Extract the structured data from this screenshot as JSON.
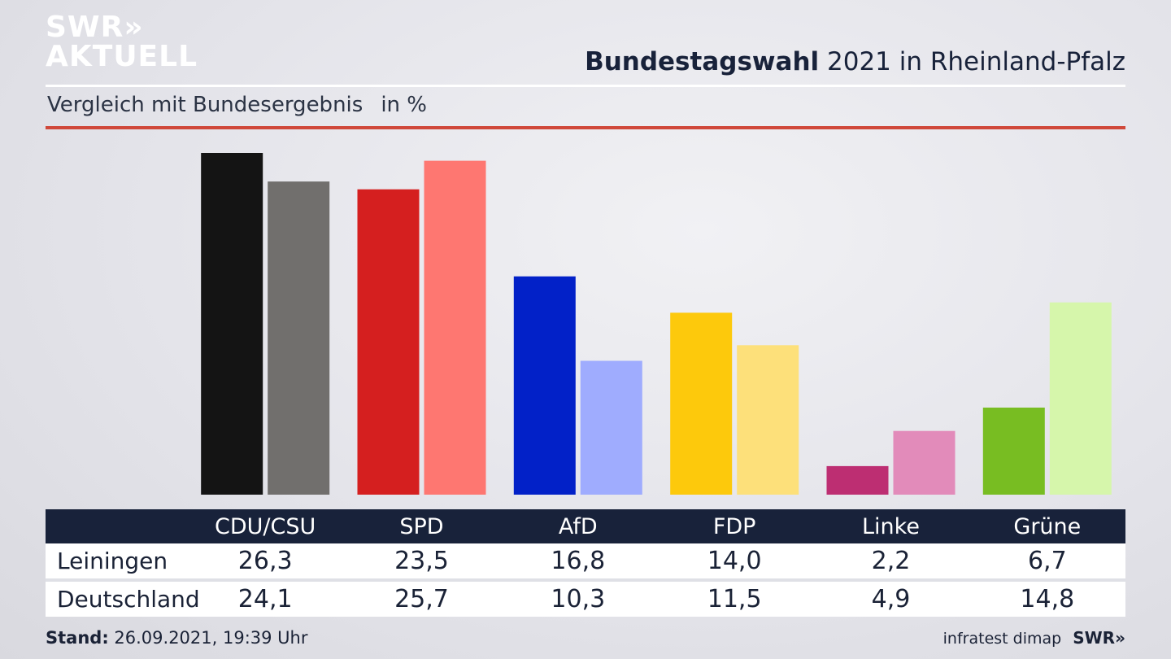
{
  "logo": {
    "line1": "SWR»",
    "line2": "AKTUELL"
  },
  "header": {
    "title_bold": "Bundestagswahl",
    "title_rest": " 2021 in Rheinland-Pfalz",
    "subtitle": "Vergleich mit Bundesergebnis",
    "unit": "in %"
  },
  "chart_data": {
    "type": "bar",
    "categories": [
      "CDU/CSU",
      "SPD",
      "AfD",
      "FDP",
      "Linke",
      "Grüne"
    ],
    "series": [
      {
        "name": "Leiningen",
        "values": [
          26.3,
          23.5,
          16.8,
          14.0,
          2.2,
          6.7
        ]
      },
      {
        "name": "Deutschland",
        "values": [
          24.1,
          25.7,
          10.3,
          11.5,
          4.9,
          14.8
        ]
      }
    ],
    "colors": {
      "primary": [
        "#141414",
        "#d51f1f",
        "#0221c8",
        "#fdc90c",
        "#bd2e72",
        "#78bd22"
      ],
      "secondary": [
        "#716f6d",
        "#fe7771",
        "#9facfe",
        "#fde07a",
        "#e28bba",
        "#d6f6ab"
      ]
    },
    "ylim": [
      0,
      26.3
    ],
    "grid": false,
    "legend": "none"
  },
  "table": {
    "columns": [
      "CDU/CSU",
      "SPD",
      "AfD",
      "FDP",
      "Linke",
      "Grüne"
    ],
    "rows": [
      {
        "label": "Leiningen",
        "values": [
          "26,3",
          "23,5",
          "16,8",
          "14,0",
          "2,2",
          "6,7"
        ]
      },
      {
        "label": "Deutschland",
        "values": [
          "24,1",
          "25,7",
          "10,3",
          "11,5",
          "4,9",
          "14,8"
        ]
      }
    ]
  },
  "footer": {
    "stand_label": "Stand:",
    "stand_value": " 26.09.2021, 19:39 Uhr",
    "source": "infratest dimap",
    "brand": "SWR»"
  },
  "colors": {
    "header_dark": "#18223a",
    "accent_red": "#d0483a"
  }
}
